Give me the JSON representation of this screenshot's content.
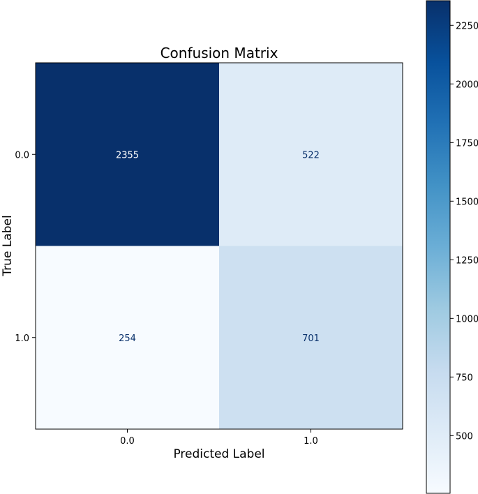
{
  "chart_data": {
    "type": "heatmap",
    "title": "Confusion Matrix",
    "xlabel": "Predicted Label",
    "ylabel": "True Label",
    "x_categories": [
      "0.0",
      "1.0"
    ],
    "y_categories": [
      "0.0",
      "1.0"
    ],
    "matrix": [
      [
        2355,
        522
      ],
      [
        254,
        701
      ]
    ],
    "cell_labels": [
      [
        "2355",
        "522"
      ],
      [
        "254",
        "701"
      ]
    ],
    "colormap": "Blues",
    "colorbar": {
      "range": [
        254,
        2355
      ],
      "ticks": [
        500,
        750,
        1000,
        1250,
        1500,
        1750,
        2000,
        2250
      ],
      "tick_labels": [
        "500",
        "750",
        "1000",
        "1250",
        "1500",
        "1750",
        "2000",
        "2250"
      ]
    }
  }
}
